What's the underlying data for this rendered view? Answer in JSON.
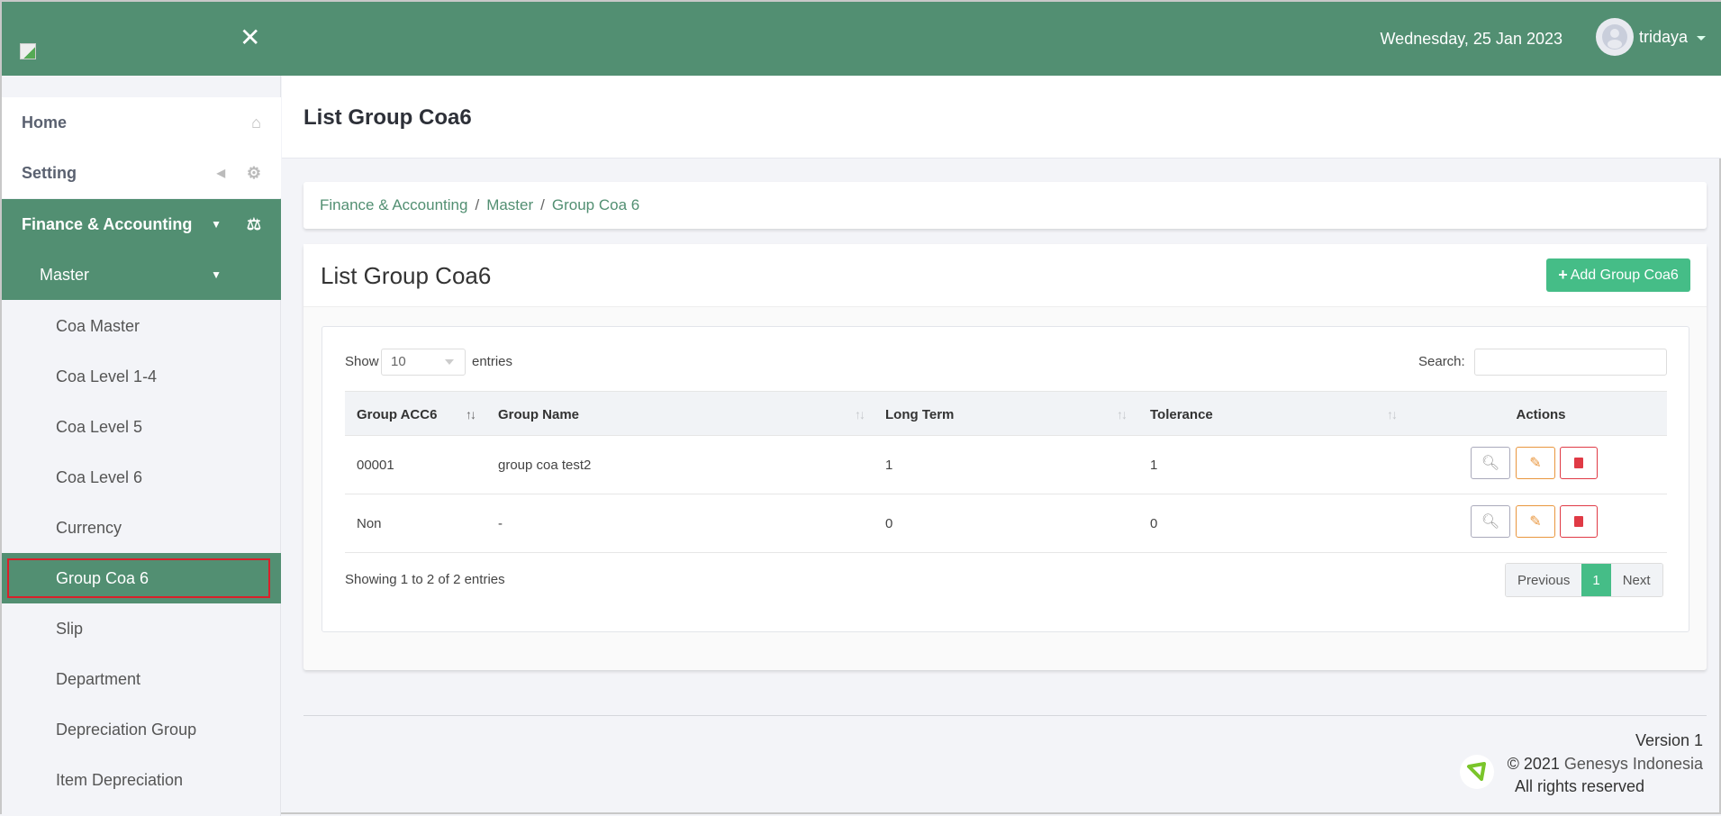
{
  "header": {
    "date": "Wednesday, 25 Jan 2023",
    "user": "tridaya",
    "close_icon": "close-icon"
  },
  "colors": {
    "primary": "#528f72",
    "accent": "#45bd87",
    "edit": "#e9963e",
    "delete": "#e03a45",
    "highlight_outline": "#d9202a"
  },
  "sidebar": {
    "items": [
      {
        "label": "Home",
        "icon": "home-icon"
      },
      {
        "label": "Setting",
        "icon": "gears-icon"
      },
      {
        "label": "Finance & Accounting",
        "icon": "balance-scale-icon"
      },
      {
        "label": "Master"
      },
      {
        "label": "Coa Master"
      },
      {
        "label": "Coa Level 1-4"
      },
      {
        "label": "Coa Level 5"
      },
      {
        "label": "Coa Level 6"
      },
      {
        "label": "Currency"
      },
      {
        "label": "Group Coa 6",
        "active": true
      },
      {
        "label": "Slip"
      },
      {
        "label": "Department"
      },
      {
        "label": "Depreciation Group"
      },
      {
        "label": "Item Depreciation"
      }
    ]
  },
  "page": {
    "title": "List Group Coa6"
  },
  "breadcrumb": [
    "Finance & Accounting",
    "Master",
    "Group Coa 6"
  ],
  "card": {
    "title": "List Group Coa6",
    "add_button": "Add Group Coa6"
  },
  "table": {
    "show_label": "Show",
    "length": "10",
    "entries_label": "entries",
    "search_label": "Search:",
    "search_value": "",
    "columns": [
      "Group ACC6",
      "Group Name",
      "Long Term",
      "Tolerance",
      "Actions"
    ],
    "rows": [
      [
        "00001",
        "group coa test2",
        "1",
        "1"
      ],
      [
        "Non",
        "-",
        "0",
        "0"
      ]
    ],
    "info": "Showing 1 to 2 of 2 entries",
    "pagination": {
      "previous": "Previous",
      "current": "1",
      "next": "Next"
    }
  },
  "footer": {
    "version": "Version 1",
    "copyright_prefix": "© 2021 ",
    "company": "Genesys Indonesia",
    "rights": "All rights reserved"
  }
}
